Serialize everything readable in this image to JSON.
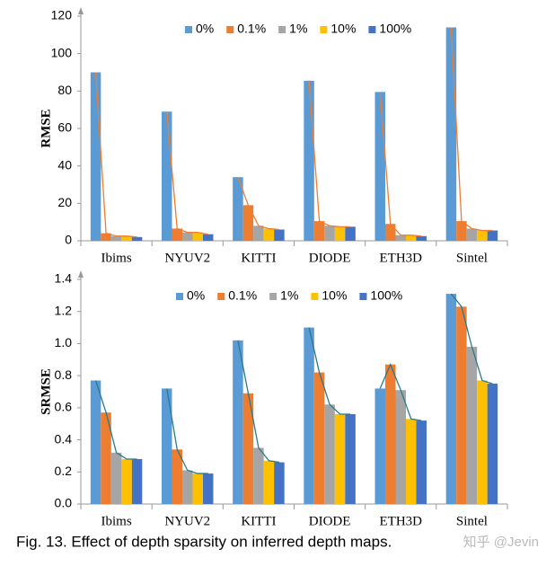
{
  "chart_data": [
    {
      "type": "bar",
      "ylabel": "RMSE",
      "categories": [
        "Ibims",
        "NYUV2",
        "KITTI",
        "DIODE",
        "ETH3D",
        "Sintel"
      ],
      "series": [
        {
          "name": "0%",
          "color": "#5b9bd5",
          "values": [
            90,
            69,
            34,
            85.5,
            79.5,
            114
          ]
        },
        {
          "name": "0.1%",
          "color": "#ed7d31",
          "values": [
            4,
            6.5,
            19,
            10.5,
            9,
            10.5
          ]
        },
        {
          "name": "1%",
          "color": "#a5a5a5",
          "values": [
            2.5,
            4.5,
            8,
            8,
            3,
            6.5
          ]
        },
        {
          "name": "10%",
          "color": "#ffc000",
          "values": [
            2.5,
            4.5,
            6.5,
            7.5,
            3,
            5.5
          ]
        },
        {
          "name": "100%",
          "color": "#4472c4",
          "values": [
            2,
            3.5,
            6,
            7.5,
            2.5,
            5.5
          ]
        }
      ],
      "ylim": [
        0,
        120
      ],
      "yticks": [
        0,
        20,
        40,
        60,
        80,
        100,
        120
      ],
      "line_color": "#ed7d31",
      "legend": "top"
    },
    {
      "type": "bar",
      "ylabel": "SRMSE",
      "categories": [
        "Ibims",
        "NYUV2",
        "KITTI",
        "DIODE",
        "ETH3D",
        "Sintel"
      ],
      "series": [
        {
          "name": "0%",
          "color": "#5b9bd5",
          "values": [
            0.77,
            0.72,
            1.02,
            1.1,
            0.72,
            1.31
          ]
        },
        {
          "name": "0.1%",
          "color": "#ed7d31",
          "values": [
            0.57,
            0.34,
            0.69,
            0.82,
            0.87,
            1.23
          ]
        },
        {
          "name": "1%",
          "color": "#a5a5a5",
          "values": [
            0.32,
            0.21,
            0.35,
            0.62,
            0.71,
            0.98
          ]
        },
        {
          "name": "10%",
          "color": "#ffc000",
          "values": [
            0.28,
            0.19,
            0.27,
            0.56,
            0.53,
            0.77
          ]
        },
        {
          "name": "100%",
          "color": "#4472c4",
          "values": [
            0.28,
            0.19,
            0.26,
            0.56,
            0.52,
            0.75
          ]
        }
      ],
      "ylim": [
        0,
        1.4
      ],
      "yticks": [
        {
          "value": 0,
          "label": "0.0"
        },
        0.2,
        0.4,
        0.6,
        0.8,
        {
          "value": 1,
          "label": "1.0"
        },
        1.2,
        1.4
      ],
      "line_color": "#2a7a8c",
      "legend": "top"
    }
  ],
  "caption": "Fig. 13. Effect of depth sparsity on inferred depth maps.",
  "watermark": "知乎 @Jevin"
}
